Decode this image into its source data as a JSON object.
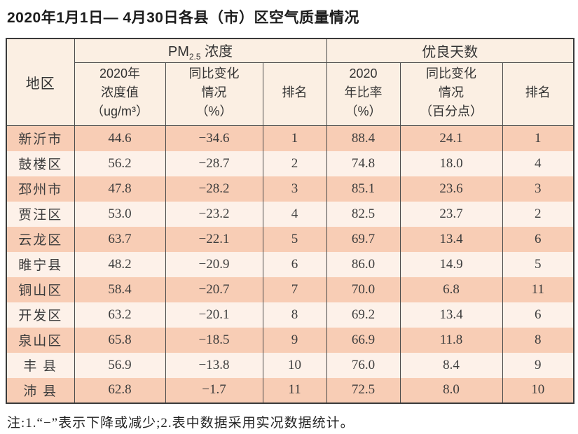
{
  "title": "2020年1月1日— 4月30日各县（市）区空气质量情况",
  "note": "注:1.“−”表示下降或减少;2.表中数据采用实况数据统计。",
  "chart_data": {
    "type": "table",
    "title": "2020年1月1日— 4月30日各县（市）区空气质量情况",
    "corner_header": "地区",
    "group_headers": {
      "pm_prefix": "PM",
      "pm_sub": "2.5",
      "pm_suffix": " 浓度",
      "good_days": "优良天数"
    },
    "subheaders": [
      "2020年\n浓度值\n（ug/m³）",
      "同比变化\n情况\n（%）",
      "排名",
      "2020\n年比率\n（%）",
      "同比变化\n情况\n（百分点）",
      "排名"
    ],
    "rows": [
      {
        "region": "新沂市",
        "pm_value": "44.6",
        "pm_change": "−34.6",
        "pm_rank": "1",
        "good_ratio": "88.4",
        "good_change": "24.1",
        "good_rank": "1"
      },
      {
        "region": "鼓楼区",
        "pm_value": "56.2",
        "pm_change": "−28.7",
        "pm_rank": "2",
        "good_ratio": "74.8",
        "good_change": "18.0",
        "good_rank": "4"
      },
      {
        "region": "邳州市",
        "pm_value": "47.8",
        "pm_change": "−28.2",
        "pm_rank": "3",
        "good_ratio": "85.1",
        "good_change": "23.6",
        "good_rank": "3"
      },
      {
        "region": "贾汪区",
        "pm_value": "53.0",
        "pm_change": "−23.2",
        "pm_rank": "4",
        "good_ratio": "82.5",
        "good_change": "23.7",
        "good_rank": "2"
      },
      {
        "region": "云龙区",
        "pm_value": "63.7",
        "pm_change": "−22.1",
        "pm_rank": "5",
        "good_ratio": "69.7",
        "good_change": "13.4",
        "good_rank": "6"
      },
      {
        "region": "睢宁县",
        "pm_value": "48.2",
        "pm_change": "−20.9",
        "pm_rank": "6",
        "good_ratio": "86.0",
        "good_change": "14.9",
        "good_rank": "5"
      },
      {
        "region": "铜山区",
        "pm_value": "58.4",
        "pm_change": "−20.7",
        "pm_rank": "7",
        "good_ratio": "70.0",
        "good_change": "6.8",
        "good_rank": "11"
      },
      {
        "region": "开发区",
        "pm_value": "63.2",
        "pm_change": "−20.1",
        "pm_rank": "8",
        "good_ratio": "69.2",
        "good_change": "13.4",
        "good_rank": "6"
      },
      {
        "region": "泉山区",
        "pm_value": "65.8",
        "pm_change": "−18.5",
        "pm_rank": "9",
        "good_ratio": "66.9",
        "good_change": "11.8",
        "good_rank": "8"
      },
      {
        "region": "丰 县",
        "pm_value": "56.9",
        "pm_change": "−13.8",
        "pm_rank": "10",
        "good_ratio": "76.0",
        "good_change": "8.4",
        "good_rank": "9"
      },
      {
        "region": "沛 县",
        "pm_value": "62.8",
        "pm_change": "−1.7",
        "pm_rank": "11",
        "good_ratio": "72.5",
        "good_change": "8.0",
        "good_rank": "10"
      }
    ],
    "colors": {
      "row_band_dark": "#f8cdb5",
      "row_band_light": "#fdf1e9",
      "header_bg": "#fbefe3",
      "border": "#3a3a3a",
      "text": "#3d3d3d"
    },
    "layout": {
      "grid": "full-borders-vertical-only-in-body",
      "banding": "alternating-rows"
    }
  }
}
